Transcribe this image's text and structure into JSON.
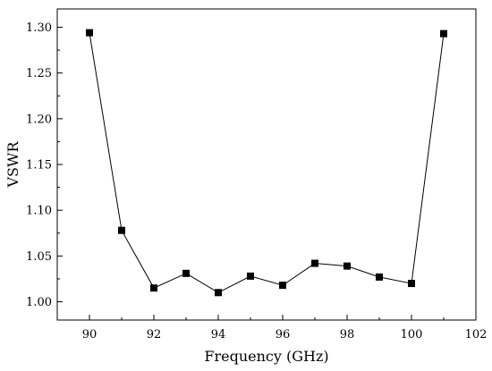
{
  "chart_data": {
    "type": "line",
    "title": "",
    "xlabel": "Frequency (GHz)",
    "ylabel": "VSWR",
    "xlim": [
      89,
      102
    ],
    "ylim": [
      0.98,
      1.32
    ],
    "x_ticks": [
      90,
      92,
      94,
      96,
      98,
      100,
      102
    ],
    "x_tick_labels": [
      "90",
      "92",
      "94",
      "96",
      "98",
      "100",
      "102"
    ],
    "y_ticks": [
      1.0,
      1.05,
      1.1,
      1.15,
      1.2,
      1.25,
      1.3
    ],
    "y_tick_labels": [
      "1.00",
      "1.05",
      "1.10",
      "1.15",
      "1.20",
      "1.25",
      "1.30"
    ],
    "grid": false,
    "marker": "square",
    "line_color": "#000000",
    "series": [
      {
        "x": [
          90,
          91,
          92,
          93,
          94,
          95,
          96,
          97,
          98,
          99,
          100,
          101
        ],
        "y": [
          1.294,
          1.078,
          1.015,
          1.031,
          1.01,
          1.028,
          1.018,
          1.042,
          1.039,
          1.027,
          1.02,
          1.293
        ]
      }
    ]
  }
}
